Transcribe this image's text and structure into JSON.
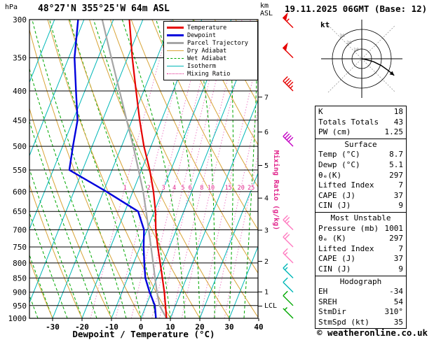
{
  "header": {
    "station_title": "48°27'N 355°25'W 64m ASL",
    "datetime_title": "19.11.2025 06GMT (Base: 12)"
  },
  "axes": {
    "pressure_unit": "hPa",
    "altitude_unit_line1": "km",
    "altitude_unit_line2": "ASL",
    "xlabel": "Dewpoint / Temperature (°C)",
    "mixing_ratio_label": "Mixing Ratio (g/kg)",
    "lcl_label": "LCL"
  },
  "legend": {
    "items": [
      {
        "label": "Temperature",
        "color": "#e60000",
        "thickness": 3,
        "line_style": "solid"
      },
      {
        "label": "Dewpoint",
        "color": "#0000dd",
        "thickness": 3,
        "line_style": "solid"
      },
      {
        "label": "Parcel Trajectory",
        "color": "#a6a6a6",
        "thickness": 3,
        "line_style": "solid"
      },
      {
        "label": "Dry Adiabat",
        "color": "#d8a437",
        "thickness": 1,
        "line_style": "solid"
      },
      {
        "label": "Wet Adiabat",
        "color": "#00a800",
        "thickness": 1,
        "line_style": "dashed"
      },
      {
        "label": "Isotherm",
        "color": "#00b7b7",
        "thickness": 1,
        "line_style": "solid"
      },
      {
        "label": "Mixing Ratio",
        "color": "#e0218a",
        "thickness": 1,
        "line_style": "dotted"
      }
    ]
  },
  "hodograph_panel": {
    "unit_label": "kt"
  },
  "stats_panel": {
    "sections": [
      {
        "header": null,
        "rows": [
          [
            "K",
            "18"
          ],
          [
            "Totals Totals",
            "43"
          ],
          [
            "PW (cm)",
            "1.25"
          ]
        ]
      },
      {
        "header": "Surface",
        "rows": [
          [
            "Temp (°C)",
            "8.7"
          ],
          [
            "Dewp (°C)",
            "5.1"
          ],
          [
            "θₑ(K)",
            "297"
          ],
          [
            "Lifted Index",
            "7"
          ],
          [
            "CAPE (J)",
            "37"
          ],
          [
            "CIN (J)",
            "9"
          ]
        ]
      },
      {
        "header": "Most Unstable",
        "rows": [
          [
            "Pressure (mb)",
            "1001"
          ],
          [
            "θₑ (K)",
            "297"
          ],
          [
            "Lifted Index",
            "7"
          ],
          [
            "CAPE (J)",
            "37"
          ],
          [
            "CIN (J)",
            "9"
          ]
        ]
      },
      {
        "header": "Hodograph",
        "rows": [
          [
            "EH",
            "-34"
          ],
          [
            "SREH",
            "54"
          ],
          [
            "StmDir",
            "310°"
          ],
          [
            "StmSpd (kt)",
            "35"
          ]
        ]
      }
    ]
  },
  "footer": {
    "copyright": "© weatheronline.co.uk"
  },
  "chart_data": {
    "type": "skewt-log-p",
    "title": "48°27'N 355°25'W 64m ASL",
    "xlabel": "Dewpoint / Temperature (°C)",
    "x_ticks_c": [
      -30,
      -20,
      -10,
      0,
      10,
      20,
      30,
      40
    ],
    "pressure_ticks_hpa": [
      300,
      350,
      400,
      450,
      500,
      550,
      600,
      650,
      700,
      750,
      800,
      850,
      900,
      950,
      1000
    ],
    "pressure_range_hpa": [
      300,
      1000
    ],
    "log_pressure_scale": true,
    "km_asl_ticks": [
      {
        "km": 1,
        "pressure": 899
      },
      {
        "km": 2,
        "pressure": 795
      },
      {
        "km": 3,
        "pressure": 701
      },
      {
        "km": 4,
        "pressure": 616
      },
      {
        "km": 5,
        "pressure": 540
      },
      {
        "km": 6,
        "pressure": 472
      },
      {
        "km": 7,
        "pressure": 410
      }
    ],
    "lcl": {
      "label": "LCL",
      "pressure": 952
    },
    "mixing_ratio_lines_gkg": [
      1,
      2,
      3,
      4,
      5,
      6,
      8,
      10,
      15,
      20,
      25
    ],
    "mixing_ratio_label_pressure": 590,
    "isotherm_step_c": 10,
    "dry_adiabat_step_c": 10,
    "wet_adiabat_step_c": 5,
    "colors": {
      "isobar": "#000000",
      "border": "#000000",
      "isotherm": "#00b7b7",
      "dry_adiabat": "#d8a437",
      "wet_adiabat": "#00a800",
      "mixing_ratio_line": "#ee82c8",
      "mixing_ratio_label": "#e0218a"
    },
    "series": {
      "temperature": {
        "color": "#e60000",
        "points": [
          [
            1000,
            8.7
          ],
          [
            950,
            6.6
          ],
          [
            900,
            4.4
          ],
          [
            850,
            1.8
          ],
          [
            800,
            -1.0
          ],
          [
            750,
            -4.0
          ],
          [
            700,
            -7.0
          ],
          [
            650,
            -9.6
          ],
          [
            600,
            -13.0
          ],
          [
            550,
            -17.2
          ],
          [
            500,
            -22.4
          ],
          [
            450,
            -27.4
          ],
          [
            400,
            -32.6
          ],
          [
            350,
            -38.4
          ],
          [
            300,
            -44.6
          ]
        ]
      },
      "dewpoint": {
        "color": "#0000dd",
        "points": [
          [
            1000,
            5.1
          ],
          [
            950,
            3.0
          ],
          [
            900,
            -0.6
          ],
          [
            850,
            -4.0
          ],
          [
            800,
            -6.4
          ],
          [
            750,
            -8.8
          ],
          [
            700,
            -11.0
          ],
          [
            650,
            -15.5
          ],
          [
            600,
            -29.0
          ],
          [
            550,
            -44.5
          ],
          [
            500,
            -46.5
          ],
          [
            450,
            -48.5
          ],
          [
            400,
            -53.0
          ],
          [
            350,
            -58.0
          ],
          [
            300,
            -62.0
          ]
        ]
      },
      "parcel": {
        "color": "#a6a6a6",
        "points": [
          [
            1000,
            8.7
          ],
          [
            950,
            4.6
          ],
          [
            900,
            1.9
          ],
          [
            850,
            -0.7
          ],
          [
            800,
            -3.4
          ],
          [
            750,
            -6.3
          ],
          [
            700,
            -9.4
          ],
          [
            650,
            -12.8
          ],
          [
            600,
            -16.5
          ],
          [
            550,
            -21.0
          ],
          [
            500,
            -26.0
          ],
          [
            450,
            -31.8
          ],
          [
            400,
            -38.2
          ],
          [
            350,
            -45.5
          ],
          [
            300,
            -53.8
          ]
        ]
      }
    },
    "wind_barbs": [
      {
        "pressure": 310,
        "speed_kt": 55,
        "color": "#e60000"
      },
      {
        "pressure": 350,
        "speed_kt": 50,
        "color": "#e60000"
      },
      {
        "pressure": 400,
        "speed_kt": 45,
        "color": "#e60000"
      },
      {
        "pressure": 500,
        "speed_kt": 40,
        "color": "#c400c4"
      },
      {
        "pressure": 700,
        "speed_kt": 25,
        "color": "#ff7bc0"
      },
      {
        "pressure": 750,
        "speed_kt": 20,
        "color": "#ff7bc0"
      },
      {
        "pressure": 800,
        "speed_kt": 15,
        "color": "#ff7bc0"
      },
      {
        "pressure": 850,
        "speed_kt": 15,
        "color": "#00b7b7"
      },
      {
        "pressure": 900,
        "speed_kt": 10,
        "color": "#00b7b7"
      },
      {
        "pressure": 950,
        "speed_kt": 10,
        "color": "#00a800"
      },
      {
        "pressure": 1000,
        "speed_kt": 5,
        "color": "#00a800"
      }
    ],
    "hodograph": {
      "unit": "kt",
      "rings_kt": [
        10,
        20,
        30
      ],
      "trace_uv_kt": [
        [
          0,
          0
        ],
        [
          5,
          -1
        ],
        [
          12,
          -3
        ],
        [
          20,
          -7
        ],
        [
          27,
          -12
        ],
        [
          33,
          -17
        ]
      ],
      "storm_dir_deg": 310,
      "storm_speed_kt": 35
    }
  }
}
